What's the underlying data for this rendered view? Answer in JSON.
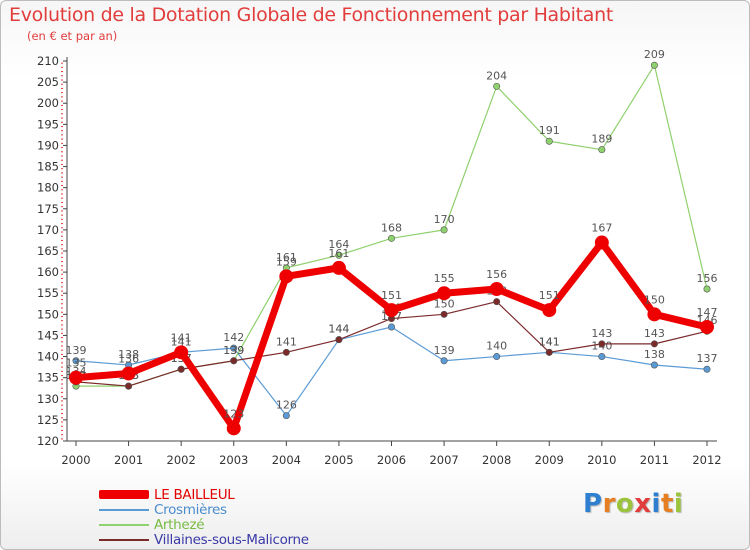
{
  "brand": {
    "text": "Proxiti",
    "letter_colors": [
      "#2f7fd0",
      "#e67e22",
      "#9bc43c",
      "#e23d3d",
      "#2f7fd0",
      "#e67e22",
      "#9bc43c"
    ]
  },
  "chart_data": {
    "type": "line",
    "title": "Evolution de la Dotation Globale de Fonctionnement par Habitant",
    "subtitle": "(en € et par an)",
    "xlabel": "",
    "ylabel": "",
    "categories": [
      "2000",
      "2001",
      "2002",
      "2003",
      "2004",
      "2005",
      "2006",
      "2007",
      "2008",
      "2009",
      "2010",
      "2011",
      "2012"
    ],
    "ylim": [
      120,
      210
    ],
    "yticks": [
      120,
      125,
      130,
      135,
      140,
      145,
      150,
      155,
      160,
      165,
      170,
      175,
      180,
      185,
      190,
      195,
      200,
      205,
      210
    ],
    "grid": false,
    "legend_position": "bottom-left",
    "series": [
      {
        "name": "Crosmières",
        "color": "#5b9bd5",
        "values": [
          139,
          138,
          141,
          142,
          126,
          144,
          147,
          139,
          140,
          141,
          140,
          138,
          137
        ]
      },
      {
        "name": "Arthezé",
        "color": "#8fd16e",
        "values": [
          133,
          133,
          137,
          139,
          161,
          164,
          168,
          170,
          204,
          191,
          189,
          209,
          156
        ]
      },
      {
        "name": "Villaines-sous-Malicorne",
        "color": "#7b2a2a",
        "values": [
          134,
          133,
          137,
          139,
          141,
          144,
          149,
          150,
          153,
          141,
          143,
          143,
          146
        ]
      },
      {
        "name": "LE BAILLEUL",
        "color": "#ee0000",
        "values": [
          135,
          136,
          141,
          123,
          159,
          161,
          151,
          155,
          156,
          151,
          167,
          150,
          147
        ]
      }
    ],
    "legend_order": [
      "LE BAILLEUL",
      "Crosmières",
      "Arthezé",
      "Villaines-sous-Malicorne"
    ]
  }
}
